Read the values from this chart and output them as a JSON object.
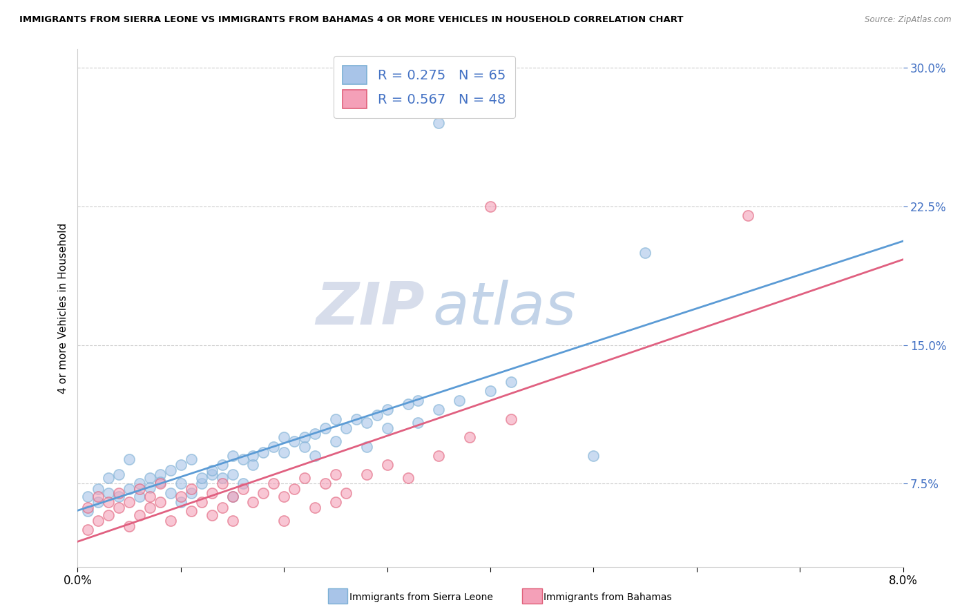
{
  "title": "IMMIGRANTS FROM SIERRA LEONE VS IMMIGRANTS FROM BAHAMAS 4 OR MORE VEHICLES IN HOUSEHOLD CORRELATION CHART",
  "source": "Source: ZipAtlas.com",
  "ylabel": "4 or more Vehicles in Household",
  "xmin": 0.0,
  "xmax": 0.08,
  "ymin": 0.03,
  "ymax": 0.31,
  "yticks": [
    0.075,
    0.15,
    0.225,
    0.3
  ],
  "ytick_labels": [
    "7.5%",
    "15.0%",
    "22.5%",
    "30.0%"
  ],
  "xtick_positions": [
    0.0,
    0.01,
    0.02,
    0.03,
    0.04,
    0.05,
    0.06,
    0.07,
    0.08
  ],
  "sierra_leone_color": "#a8c4e8",
  "bahamas_color": "#f4a0b8",
  "sierra_leone_edge_color": "#7bafd4",
  "bahamas_edge_color": "#e0607a",
  "sierra_leone_line_color": "#5b9bd5",
  "bahamas_line_color": "#e06080",
  "R_sierra": 0.275,
  "N_sierra": 65,
  "R_bahamas": 0.567,
  "N_bahamas": 48,
  "legend_label_sierra": "Immigrants from Sierra Leone",
  "legend_label_bahamas": "Immigrants from Bahamas",
  "watermark_zip": "ZIP",
  "watermark_atlas": "atlas",
  "grid_color": "#cccccc",
  "spine_color": "#cccccc",
  "tick_color": "#4472c4",
  "sierra_leone_points": [
    [
      0.001,
      0.06
    ],
    [
      0.001,
      0.068
    ],
    [
      0.002,
      0.065
    ],
    [
      0.002,
      0.072
    ],
    [
      0.003,
      0.07
    ],
    [
      0.003,
      0.078
    ],
    [
      0.004,
      0.068
    ],
    [
      0.004,
      0.08
    ],
    [
      0.005,
      0.072
    ],
    [
      0.005,
      0.088
    ],
    [
      0.006,
      0.075
    ],
    [
      0.006,
      0.068
    ],
    [
      0.007,
      0.078
    ],
    [
      0.007,
      0.073
    ],
    [
      0.008,
      0.08
    ],
    [
      0.008,
      0.076
    ],
    [
      0.009,
      0.082
    ],
    [
      0.009,
      0.07
    ],
    [
      0.01,
      0.085
    ],
    [
      0.01,
      0.075
    ],
    [
      0.01,
      0.065
    ],
    [
      0.011,
      0.07
    ],
    [
      0.011,
      0.088
    ],
    [
      0.012,
      0.075
    ],
    [
      0.012,
      0.078
    ],
    [
      0.013,
      0.08
    ],
    [
      0.013,
      0.082
    ],
    [
      0.014,
      0.085
    ],
    [
      0.014,
      0.078
    ],
    [
      0.015,
      0.09
    ],
    [
      0.015,
      0.08
    ],
    [
      0.015,
      0.068
    ],
    [
      0.016,
      0.088
    ],
    [
      0.016,
      0.075
    ],
    [
      0.017,
      0.09
    ],
    [
      0.017,
      0.085
    ],
    [
      0.018,
      0.092
    ],
    [
      0.019,
      0.095
    ],
    [
      0.02,
      0.1
    ],
    [
      0.02,
      0.092
    ],
    [
      0.021,
      0.098
    ],
    [
      0.022,
      0.1
    ],
    [
      0.022,
      0.095
    ],
    [
      0.023,
      0.102
    ],
    [
      0.023,
      0.09
    ],
    [
      0.024,
      0.105
    ],
    [
      0.025,
      0.11
    ],
    [
      0.025,
      0.098
    ],
    [
      0.026,
      0.105
    ],
    [
      0.027,
      0.11
    ],
    [
      0.028,
      0.108
    ],
    [
      0.028,
      0.095
    ],
    [
      0.029,
      0.112
    ],
    [
      0.03,
      0.115
    ],
    [
      0.03,
      0.105
    ],
    [
      0.032,
      0.118
    ],
    [
      0.033,
      0.12
    ],
    [
      0.033,
      0.108
    ],
    [
      0.035,
      0.115
    ],
    [
      0.037,
      0.12
    ],
    [
      0.04,
      0.125
    ],
    [
      0.042,
      0.13
    ],
    [
      0.05,
      0.09
    ],
    [
      0.035,
      0.27
    ],
    [
      0.055,
      0.2
    ]
  ],
  "bahamas_points": [
    [
      0.001,
      0.05
    ],
    [
      0.001,
      0.062
    ],
    [
      0.002,
      0.055
    ],
    [
      0.002,
      0.068
    ],
    [
      0.003,
      0.058
    ],
    [
      0.003,
      0.065
    ],
    [
      0.004,
      0.062
    ],
    [
      0.004,
      0.07
    ],
    [
      0.005,
      0.052
    ],
    [
      0.005,
      0.065
    ],
    [
      0.006,
      0.058
    ],
    [
      0.006,
      0.072
    ],
    [
      0.007,
      0.062
    ],
    [
      0.007,
      0.068
    ],
    [
      0.008,
      0.065
    ],
    [
      0.008,
      0.075
    ],
    [
      0.009,
      0.055
    ],
    [
      0.01,
      0.068
    ],
    [
      0.011,
      0.072
    ],
    [
      0.011,
      0.06
    ],
    [
      0.012,
      0.065
    ],
    [
      0.013,
      0.07
    ],
    [
      0.013,
      0.058
    ],
    [
      0.014,
      0.075
    ],
    [
      0.014,
      0.062
    ],
    [
      0.015,
      0.068
    ],
    [
      0.015,
      0.055
    ],
    [
      0.016,
      0.072
    ],
    [
      0.017,
      0.065
    ],
    [
      0.018,
      0.07
    ],
    [
      0.019,
      0.075
    ],
    [
      0.02,
      0.068
    ],
    [
      0.02,
      0.055
    ],
    [
      0.021,
      0.072
    ],
    [
      0.022,
      0.078
    ],
    [
      0.023,
      0.062
    ],
    [
      0.024,
      0.075
    ],
    [
      0.025,
      0.08
    ],
    [
      0.025,
      0.065
    ],
    [
      0.026,
      0.07
    ],
    [
      0.028,
      0.08
    ],
    [
      0.03,
      0.085
    ],
    [
      0.032,
      0.078
    ],
    [
      0.035,
      0.09
    ],
    [
      0.038,
      0.1
    ],
    [
      0.042,
      0.11
    ],
    [
      0.04,
      0.225
    ],
    [
      0.065,
      0.22
    ]
  ]
}
